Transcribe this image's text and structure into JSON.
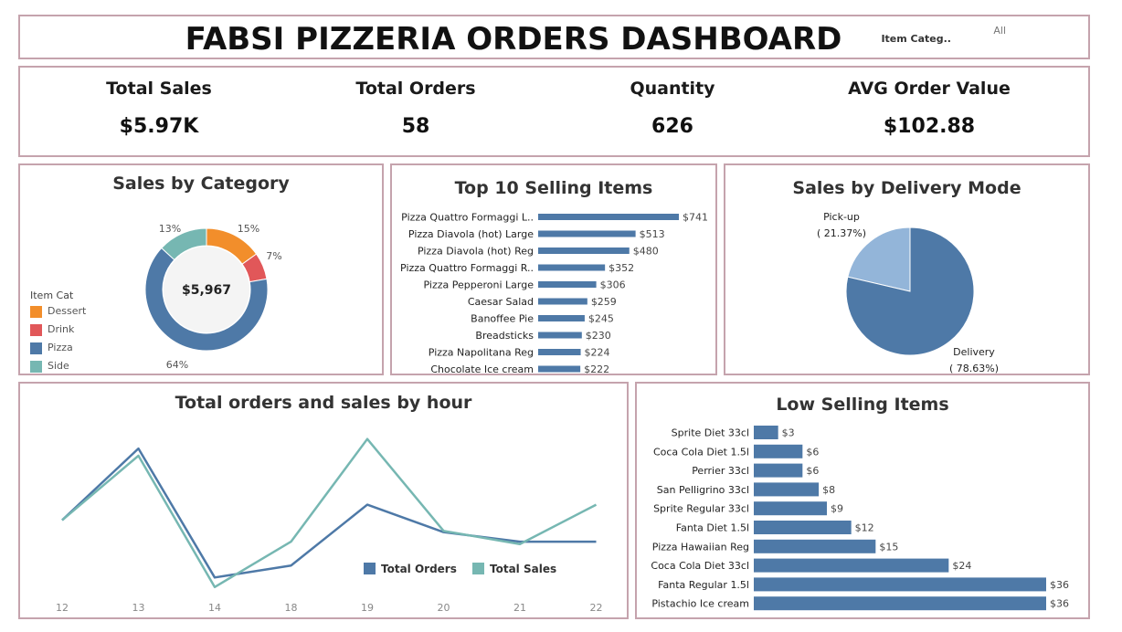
{
  "header": {
    "title": "FABSI PIZZERIA ORDERS DASHBOARD",
    "filter_label": "Item Categ..",
    "filter_value": "All"
  },
  "kpis": [
    {
      "label": "Total Sales",
      "value": "$5.97K"
    },
    {
      "label": "Total Orders",
      "value": "58"
    },
    {
      "label": "Quantity",
      "value": "626"
    },
    {
      "label": "AVG Order Value",
      "value": "$102.88"
    }
  ],
  "colors": {
    "dessert": "#f28e2b",
    "drink": "#e15759",
    "pizza": "#4e79a7",
    "side": "#76b7b2",
    "pie_pickup": "#93b5d9",
    "bar": "#4e79a7",
    "border": "#c5a3ad"
  },
  "chart_data": [
    {
      "type": "donut",
      "title": "Sales by Category",
      "center_label": "$5,967",
      "legend_title": "Item Cat",
      "categories": [
        "Dessert",
        "Drink",
        "Pizza",
        "Side"
      ],
      "values": [
        15,
        7,
        64,
        13
      ],
      "labels": [
        "15%",
        "7%",
        "64%",
        "13%"
      ]
    },
    {
      "type": "bar",
      "title": "Top 10 Selling Items",
      "categories": [
        "Pizza Quattro Formaggi L..",
        "Pizza Diavola (hot) Large",
        "Pizza Diavola (hot) Reg",
        "Pizza Quattro Formaggi R..",
        "Pizza Pepperoni Large",
        "Caesar Salad",
        "Banoffee Pie",
        "Breadsticks",
        "Pizza Napolitana Reg",
        "Chocolate Ice cream"
      ],
      "values": [
        741,
        513,
        480,
        352,
        306,
        259,
        245,
        230,
        224,
        222
      ],
      "labels": [
        "$741",
        "$513",
        "$480",
        "$352",
        "$306",
        "$259",
        "$245",
        "$230",
        "$224",
        "$222"
      ]
    },
    {
      "type": "pie",
      "title": "Sales by Delivery Mode",
      "categories": [
        "Pick-up",
        "Delivery"
      ],
      "values": [
        21.37,
        78.63
      ],
      "labels": [
        "( 21.37%)",
        "( 78.63%)"
      ]
    },
    {
      "type": "line",
      "title": "Total orders and sales by hour",
      "x": [
        "12",
        "13",
        "14",
        "18",
        "19",
        "20",
        "21",
        "22"
      ],
      "series": [
        {
          "name": "Total Orders",
          "values": [
            6,
            12,
            1.2,
            2.2,
            7.3,
            5,
            4.2,
            4.2
          ]
        },
        {
          "name": "Total Sales",
          "values": [
            6,
            11.4,
            0.4,
            4.2,
            12.8,
            5.1,
            4,
            7.3
          ]
        }
      ]
    },
    {
      "type": "bar",
      "title": "Low Selling Items",
      "categories": [
        "Sprite Diet 33cl",
        "Coca Cola Diet 1.5l",
        "Perrier 33cl",
        "San Pelligrino 33cl",
        "Sprite Regular 33cl",
        "Fanta Diet 1.5l",
        "Pizza Hawaiian Reg",
        "Coca Cola Diet 33cl",
        "Fanta Regular 1.5l",
        "Pistachio Ice cream"
      ],
      "values": [
        3,
        6,
        6,
        8,
        9,
        12,
        15,
        24,
        36,
        36
      ],
      "labels": [
        "$3",
        "$6",
        "$6",
        "$8",
        "$9",
        "$12",
        "$15",
        "$24",
        "$36",
        "$36"
      ]
    }
  ]
}
